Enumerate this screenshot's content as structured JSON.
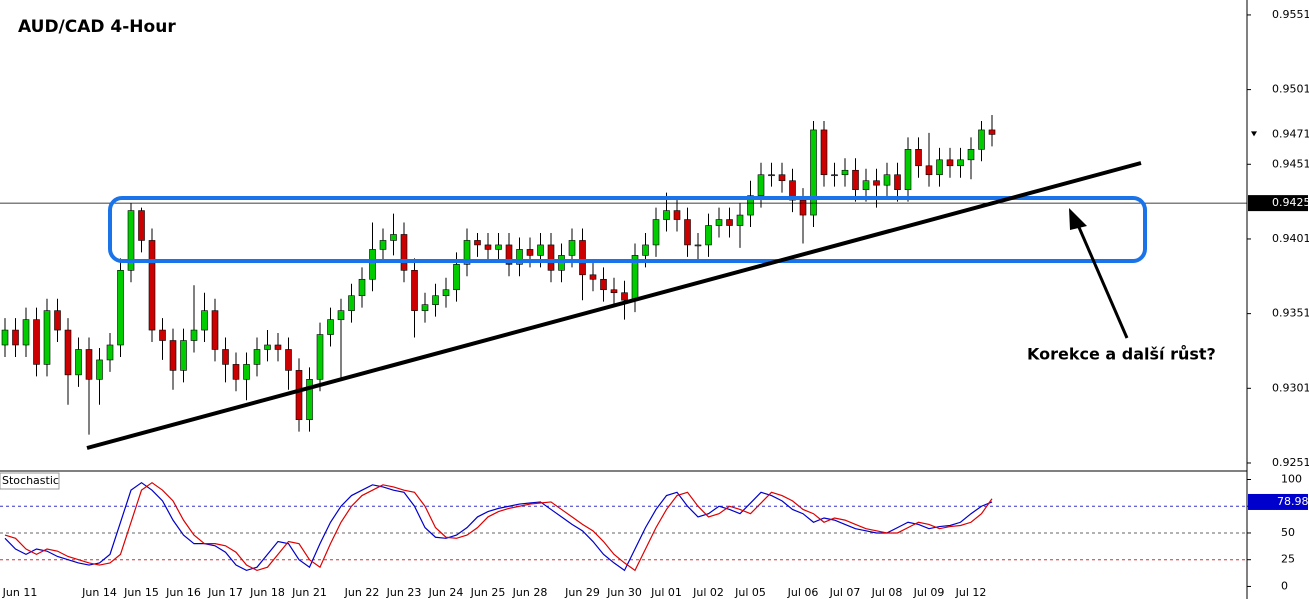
{
  "chart_data": [
    {
      "type": "candlestick",
      "title": "AUD/CAD 4-Hour",
      "annotation": "Korekce a další růst?",
      "categories": [
        null,
        "Jun 11",
        null,
        null,
        null,
        null,
        null,
        null,
        null,
        "Jun 14",
        null,
        null,
        null,
        "Jun 15",
        null,
        null,
        null,
        "Jun 16",
        null,
        null,
        null,
        "Jun 17",
        null,
        null,
        null,
        "Jun 18",
        null,
        null,
        null,
        "Jun 21",
        null,
        null,
        null,
        null,
        "Jun 22",
        null,
        null,
        null,
        "Jun 23",
        null,
        null,
        null,
        "Jun 24",
        null,
        null,
        null,
        "Jun 25",
        null,
        null,
        null,
        "Jun 28",
        null,
        null,
        null,
        null,
        "Jun 29",
        null,
        null,
        null,
        "Jun 30",
        null,
        null,
        null,
        "Jul 01",
        null,
        null,
        null,
        "Jul 02",
        null,
        null,
        null,
        "Jul 05",
        null,
        null,
        null,
        null,
        "Jul 06",
        null,
        null,
        null,
        "Jul 07",
        null,
        null,
        null,
        "Jul 08",
        null,
        null,
        null,
        "Jul 09",
        null,
        null,
        null,
        "Jul 12",
        null,
        null
      ],
      "open": [
        0.933,
        0.934,
        0.933,
        0.9347,
        0.9317,
        0.9353,
        0.934,
        0.931,
        0.9327,
        0.9307,
        0.932,
        0.933,
        0.938,
        0.942,
        0.94,
        0.934,
        0.9333,
        0.9313,
        0.9333,
        0.934,
        0.9353,
        0.9327,
        0.9317,
        0.9307,
        0.9317,
        0.9327,
        0.933,
        0.9327,
        0.9313,
        0.928,
        0.9307,
        0.9337,
        0.9347,
        0.9353,
        0.9363,
        0.9374,
        0.9394,
        0.94,
        0.9404,
        0.938,
        0.9353,
        0.9357,
        0.9363,
        0.9367,
        0.9384,
        0.94,
        0.9397,
        0.9394,
        0.9397,
        0.9384,
        0.9394,
        0.939,
        0.9397,
        0.938,
        0.939,
        0.94,
        0.9377,
        0.9374,
        0.9367,
        0.9365,
        0.936,
        0.939,
        0.9397,
        0.9414,
        0.942,
        0.9414,
        0.9397,
        0.9397,
        0.941,
        0.9414,
        0.941,
        0.9417,
        0.943,
        0.9444,
        0.9444,
        0.944,
        0.9427,
        0.9417,
        0.9474,
        0.9444,
        0.9444,
        0.9447,
        0.9434,
        0.944,
        0.9437,
        0.9444,
        0.9434,
        0.9461,
        0.945,
        0.9444,
        0.9454,
        0.945,
        0.9454,
        0.9461,
        0.9474
      ],
      "high": [
        0.9348,
        0.9348,
        0.9355,
        0.9355,
        0.9361,
        0.9361,
        0.9348,
        0.9335,
        0.9335,
        0.9328,
        0.9338,
        0.9388,
        0.9425,
        0.9422,
        0.9408,
        0.9348,
        0.9341,
        0.9341,
        0.937,
        0.9365,
        0.9361,
        0.9335,
        0.9325,
        0.9325,
        0.9335,
        0.934,
        0.9338,
        0.9335,
        0.9321,
        0.9315,
        0.9345,
        0.9355,
        0.9361,
        0.9371,
        0.9382,
        0.9412,
        0.9408,
        0.9418,
        0.9412,
        0.9388,
        0.9365,
        0.9371,
        0.9375,
        0.9392,
        0.9408,
        0.9405,
        0.9405,
        0.9405,
        0.9405,
        0.9402,
        0.9402,
        0.9405,
        0.9405,
        0.9398,
        0.9408,
        0.9408,
        0.9385,
        0.9382,
        0.9375,
        0.9373,
        0.9398,
        0.9405,
        0.9422,
        0.9432,
        0.9428,
        0.9422,
        0.9405,
        0.9418,
        0.9422,
        0.9422,
        0.9425,
        0.944,
        0.9452,
        0.9452,
        0.9452,
        0.9448,
        0.9435,
        0.948,
        0.948,
        0.9452,
        0.9455,
        0.9455,
        0.9448,
        0.9448,
        0.9452,
        0.9452,
        0.9469,
        0.9469,
        0.9472,
        0.9462,
        0.9462,
        0.9462,
        0.9469,
        0.948,
        0.9484
      ],
      "low": [
        0.9322,
        0.9322,
        0.9322,
        0.9309,
        0.9309,
        0.9332,
        0.929,
        0.9302,
        0.927,
        0.929,
        0.9312,
        0.9322,
        0.9372,
        0.9392,
        0.9332,
        0.932,
        0.93,
        0.9305,
        0.9325,
        0.9332,
        0.9319,
        0.9305,
        0.9299,
        0.9293,
        0.9309,
        0.9319,
        0.9319,
        0.93,
        0.9272,
        0.9272,
        0.9299,
        0.9329,
        0.9308,
        0.9345,
        0.9355,
        0.9366,
        0.9386,
        0.939,
        0.9372,
        0.9335,
        0.9345,
        0.9349,
        0.9355,
        0.9359,
        0.9376,
        0.9389,
        0.9386,
        0.9386,
        0.9376,
        0.9376,
        0.9382,
        0.9382,
        0.9372,
        0.9372,
        0.9382,
        0.936,
        0.9366,
        0.9359,
        0.9357,
        0.9347,
        0.9352,
        0.9382,
        0.9389,
        0.9406,
        0.9406,
        0.9389,
        0.9385,
        0.9389,
        0.9402,
        0.9402,
        0.9395,
        0.9409,
        0.9422,
        0.9436,
        0.9432,
        0.9419,
        0.9398,
        0.9409,
        0.9436,
        0.9436,
        0.9436,
        0.9426,
        0.9426,
        0.9422,
        0.9429,
        0.9426,
        0.9426,
        0.9442,
        0.9436,
        0.9436,
        0.9442,
        0.9442,
        0.9441,
        0.9453,
        0.9463
      ],
      "close": [
        0.934,
        0.933,
        0.9347,
        0.9317,
        0.9353,
        0.934,
        0.931,
        0.9327,
        0.9307,
        0.932,
        0.933,
        0.938,
        0.942,
        0.94,
        0.934,
        0.9333,
        0.9313,
        0.9333,
        0.934,
        0.9353,
        0.9327,
        0.9317,
        0.9307,
        0.9317,
        0.9327,
        0.933,
        0.9327,
        0.9313,
        0.928,
        0.9307,
        0.9337,
        0.9347,
        0.9353,
        0.9363,
        0.9374,
        0.9394,
        0.94,
        0.9404,
        0.938,
        0.9353,
        0.9357,
        0.9363,
        0.9367,
        0.9384,
        0.94,
        0.9397,
        0.9394,
        0.9397,
        0.9384,
        0.9394,
        0.939,
        0.9397,
        0.938,
        0.939,
        0.94,
        0.9377,
        0.9374,
        0.9367,
        0.9365,
        0.936,
        0.939,
        0.9397,
        0.9414,
        0.942,
        0.9414,
        0.9397,
        0.9397,
        0.941,
        0.9414,
        0.941,
        0.9417,
        0.943,
        0.9444,
        0.9444,
        0.944,
        0.9427,
        0.9417,
        0.9474,
        0.9444,
        0.9444,
        0.9447,
        0.9434,
        0.944,
        0.9437,
        0.9444,
        0.9434,
        0.9461,
        0.945,
        0.9444,
        0.9454,
        0.945,
        0.9454,
        0.9461,
        0.9474,
        0.9471
      ],
      "up_color": "#00cc00",
      "down_color": "#cc0000",
      "hline": 0.9425,
      "ylim": [
        0.92463,
        0.9561
      ],
      "yticks": [
        0.9551,
        0.9501,
        0.9451,
        0.9401,
        0.9351,
        0.9301,
        0.9251
      ]
    },
    {
      "type": "line",
      "title": "Stochastic",
      "series": [
        {
          "color": "#0000cc",
          "values": [
            45,
            35,
            30,
            35,
            33,
            28,
            25,
            22,
            20,
            22,
            30,
            60,
            90,
            97,
            90,
            80,
            62,
            48,
            40,
            40,
            38,
            32,
            20,
            15,
            18,
            30,
            42,
            40,
            25,
            18,
            40,
            60,
            75,
            85,
            90,
            95,
            93,
            90,
            88,
            75,
            55,
            46,
            45,
            48,
            55,
            65,
            70,
            73,
            75,
            77,
            78,
            79,
            72,
            65,
            58,
            52,
            42,
            30,
            22,
            15,
            35,
            55,
            72,
            85,
            88,
            75,
            65,
            68,
            75,
            72,
            68,
            78,
            88,
            85,
            80,
            72,
            68,
            60,
            64,
            62,
            58,
            54,
            52,
            50,
            50,
            55,
            60,
            58,
            54,
            56,
            57,
            60,
            68,
            75,
            78.98
          ]
        },
        {
          "color": "#dd0000",
          "values": [
            48,
            45,
            35,
            30,
            35,
            33,
            28,
            25,
            22,
            20,
            22,
            30,
            60,
            90,
            97,
            90,
            80,
            62,
            48,
            40,
            40,
            38,
            32,
            20,
            15,
            18,
            30,
            42,
            40,
            25,
            18,
            40,
            60,
            75,
            85,
            90,
            95,
            93,
            90,
            88,
            75,
            55,
            46,
            45,
            48,
            55,
            65,
            70,
            73,
            75,
            77,
            78,
            79,
            72,
            65,
            58,
            52,
            42,
            30,
            22,
            15,
            35,
            55,
            72,
            85,
            88,
            75,
            65,
            68,
            75,
            72,
            68,
            78,
            88,
            85,
            80,
            72,
            68,
            60,
            64,
            62,
            58,
            54,
            52,
            50,
            50,
            55,
            60,
            58,
            54,
            56,
            57,
            60,
            68,
            82
          ]
        }
      ],
      "levels": [
        75,
        50,
        25
      ],
      "level_colors": [
        "#3333cc",
        "#666666",
        "#cc3333"
      ],
      "ylim": [
        -8,
        107
      ],
      "yticks": [
        100,
        75,
        50,
        25,
        0
      ]
    }
  ]
}
